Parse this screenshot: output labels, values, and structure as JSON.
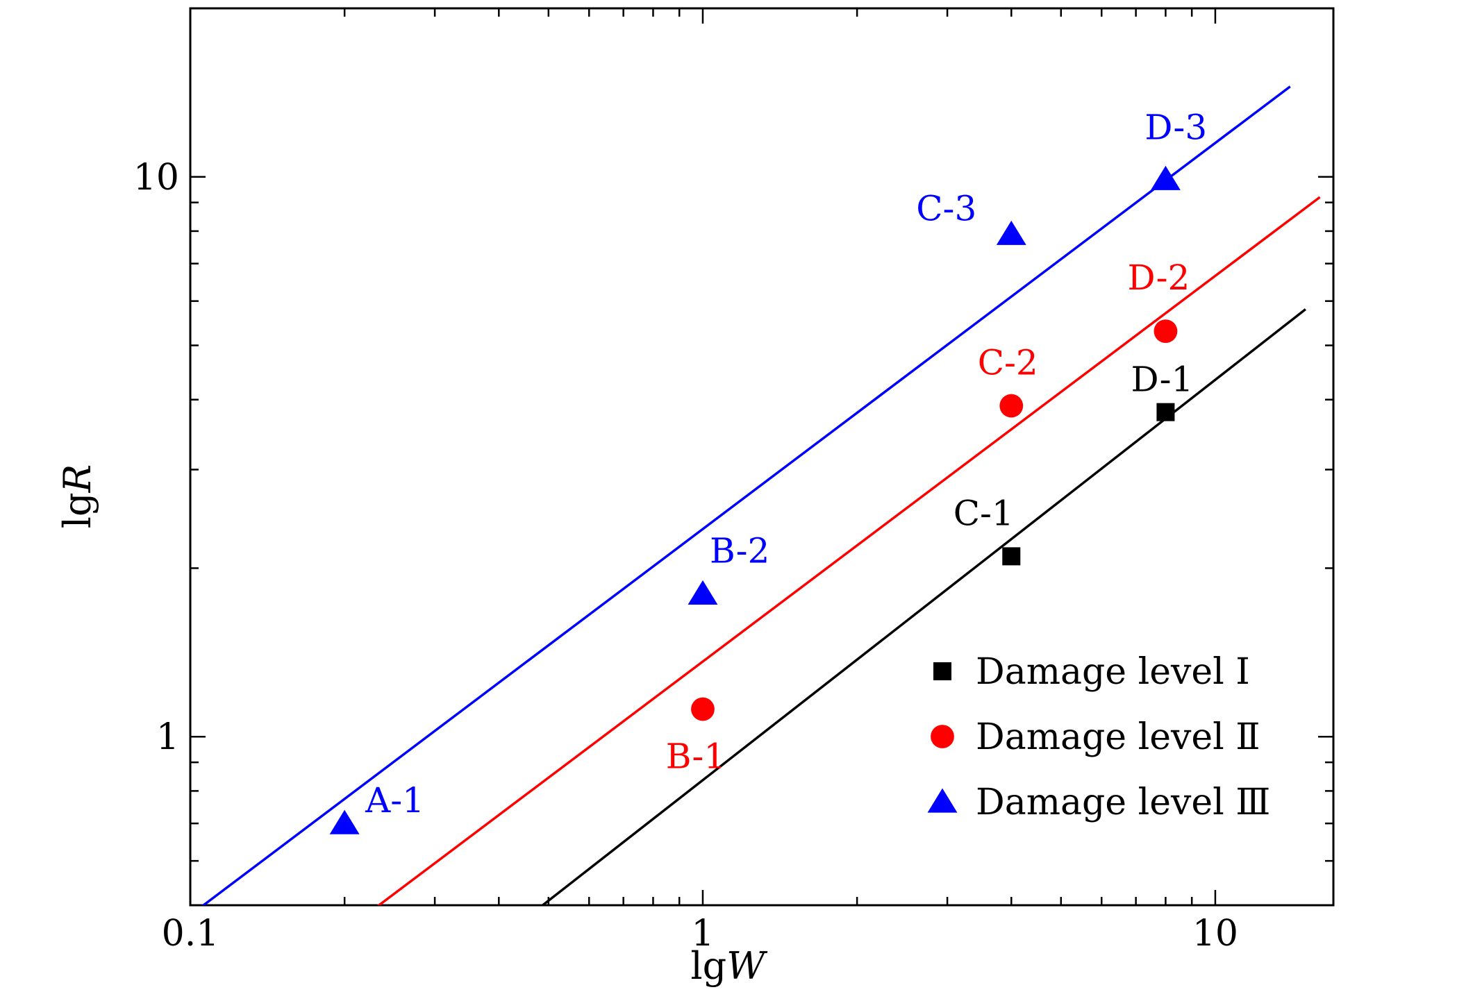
{
  "chart_data": {
    "type": "scatter",
    "x_scale": "log",
    "y_scale": "log",
    "xlim": [
      0.1,
      17
    ],
    "ylim": [
      0.5,
      20
    ],
    "x_ticks": [
      0.1,
      1,
      10
    ],
    "y_ticks": [
      1,
      10
    ],
    "x_tick_labels": [
      "0.1",
      "1",
      "10"
    ],
    "y_tick_labels": [
      "1",
      "10"
    ],
    "xlabel_prefix": "lg",
    "xlabel_var": "W",
    "ylabel_prefix": "lg",
    "ylabel_var": "R",
    "legend_position": "bottom-right",
    "series": [
      {
        "name": "Damage level Ⅰ",
        "legend_label": "Damage level Ⅰ",
        "color": "#000000",
        "marker": "square",
        "points": [
          {
            "label": "C-1",
            "x": 4.0,
            "y": 2.1
          },
          {
            "label": "D-1",
            "x": 8.0,
            "y": 3.8
          }
        ],
        "fit_line": {
          "x": [
            0.46,
            15
          ],
          "y": [
            0.48,
            5.8
          ]
        }
      },
      {
        "name": "Damage level Ⅱ",
        "legend_label": "Damage level Ⅱ",
        "color": "#ff0000",
        "marker": "circle",
        "points": [
          {
            "label": "B-1",
            "x": 1.0,
            "y": 1.12
          },
          {
            "label": "C-2",
            "x": 4.0,
            "y": 3.9
          },
          {
            "label": "D-2",
            "x": 8.0,
            "y": 5.3
          }
        ],
        "fit_line": {
          "x": [
            0.22,
            16
          ],
          "y": [
            0.48,
            9.2
          ]
        }
      },
      {
        "name": "Damage level Ⅲ",
        "legend_label": "Damage level Ⅲ",
        "color": "#0000ff",
        "marker": "triangle",
        "points": [
          {
            "label": "A-1",
            "x": 0.2,
            "y": 0.7
          },
          {
            "label": "B-2",
            "x": 1.0,
            "y": 1.8
          },
          {
            "label": "C-3",
            "x": 4.0,
            "y": 7.9
          },
          {
            "label": "D-3",
            "x": 8.0,
            "y": 9.9
          }
        ],
        "fit_line": {
          "x": [
            0.1,
            14
          ],
          "y": [
            0.48,
            14.5
          ]
        }
      }
    ]
  }
}
